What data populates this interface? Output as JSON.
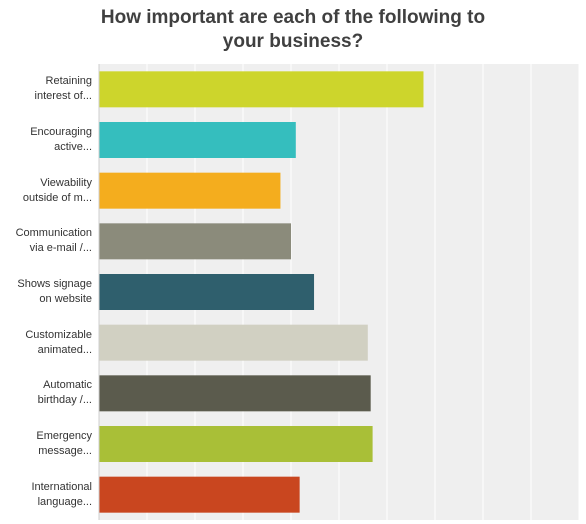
{
  "chart_data": {
    "type": "bar",
    "orientation": "horizontal",
    "title_lines": [
      "How important are each of the following to",
      "your business?"
    ],
    "category_lines": [
      [
        "Retaining",
        "interest of..."
      ],
      [
        "Encouraging",
        "active..."
      ],
      [
        "Viewability",
        "outside of m..."
      ],
      [
        "Communication",
        "via e-mail /..."
      ],
      [
        "Shows signage",
        "on website"
      ],
      [
        "Customizable",
        "animated..."
      ],
      [
        "Automatic",
        "birthday /..."
      ],
      [
        "Emergency",
        "message..."
      ],
      [
        "International",
        "language..."
      ]
    ],
    "values": [
      3.38,
      2.05,
      1.89,
      2.0,
      2.24,
      2.8,
      2.83,
      2.85,
      2.09
    ],
    "colors": [
      "#cdd52c",
      "#35bebe",
      "#f4ad1e",
      "#8b8b7b",
      "#2f5f6d",
      "#d1d0c2",
      "#5b5b4d",
      "#a9bf37",
      "#c9461f"
    ],
    "xlim": [
      0,
      5
    ],
    "gridlines": true,
    "plot_background": "#efefef",
    "tick_labels_shown": false
  }
}
